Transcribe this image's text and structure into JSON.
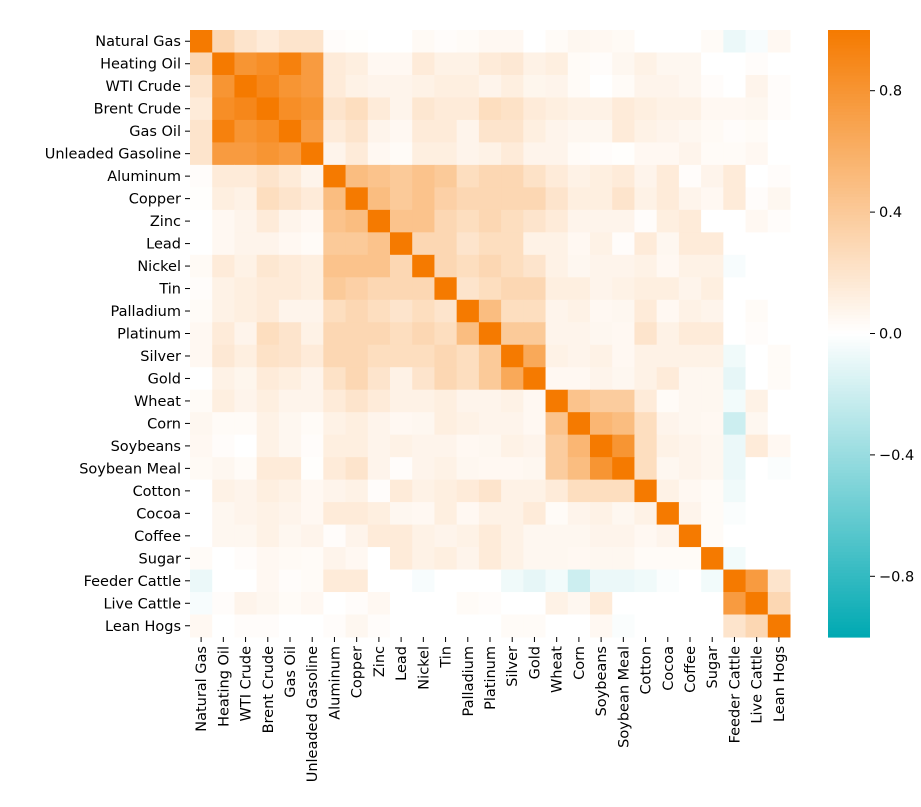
{
  "chart_data": {
    "type": "heatmap",
    "title": "",
    "xlabel": "",
    "ylabel": "",
    "labels": [
      "Natural Gas",
      "Heating Oil",
      "WTI Crude",
      "Brent Crude",
      "Gas Oil",
      "Unleaded Gasoline",
      "Aluminum",
      "Copper",
      "Zinc",
      "Lead",
      "Nickel",
      "Tin",
      "Palladium",
      "Platinum",
      "Silver",
      "Gold",
      "Wheat",
      "Corn",
      "Soybeans",
      "Soybean Meal",
      "Cotton",
      "Cocoa",
      "Coffee",
      "Sugar",
      "Feeder Cattle",
      "Live Cattle",
      "Lean Hogs"
    ],
    "symmetric": true,
    "upper_triangle": [
      [
        1,
        0.3,
        0.2,
        0.15,
        0.2,
        0.2,
        0.02,
        0.01,
        0,
        0,
        0.04,
        0.02,
        0.03,
        0.05,
        0.05,
        0,
        0.03,
        0.06,
        0.05,
        0.04,
        0,
        0,
        0,
        0.03,
        -0.08,
        -0.03,
        0.05
      ],
      [
        1,
        0.8,
        0.85,
        0.95,
        0.75,
        0.15,
        0.12,
        0.05,
        0.05,
        0.15,
        0.1,
        0.1,
        0.15,
        0.17,
        0.1,
        0.12,
        0.03,
        0.02,
        0.06,
        0.1,
        0.06,
        0.06,
        0,
        0,
        0.02,
        0,
        0.05
      ],
      [
        1,
        0.9,
        0.8,
        0.75,
        0.15,
        0.1,
        0.08,
        0.08,
        0.1,
        0.12,
        0.12,
        0.08,
        0.12,
        0.07,
        0.08,
        0.03,
        0,
        0.03,
        0.08,
        0.08,
        0.06,
        0.02,
        0,
        0.08,
        0.02,
        0.05
      ],
      [
        1,
        0.85,
        0.8,
        0.2,
        0.25,
        0.15,
        0.08,
        0.18,
        0.15,
        0.15,
        0.25,
        0.22,
        0.15,
        0.12,
        0.1,
        0.1,
        0.15,
        0.12,
        0.1,
        0.1,
        0.05,
        0.05,
        0.06,
        0.02,
        0
      ],
      [
        1,
        0.75,
        0.15,
        0.2,
        0.08,
        0.05,
        0.15,
        0.15,
        0.08,
        0.2,
        0.2,
        0.12,
        0.08,
        0.06,
        0.06,
        0.15,
        0.1,
        0.08,
        0.06,
        0.04,
        0.02,
        0.03,
        0,
        0
      ],
      [
        1,
        0.08,
        0.15,
        0.05,
        0.03,
        0.12,
        0.12,
        0.08,
        0.1,
        0.15,
        0.08,
        0.08,
        0.03,
        0.02,
        0.01,
        0.05,
        0.05,
        0.08,
        0.03,
        0.03,
        0.05,
        0,
        0
      ],
      [
        1,
        0.5,
        0.45,
        0.4,
        0.45,
        0.4,
        0.25,
        0.3,
        0.3,
        0.22,
        0.15,
        0.1,
        0.12,
        0.15,
        0.08,
        0.15,
        0.02,
        0.08,
        0.15,
        0,
        0.02,
        0
      ],
      [
        1,
        0.5,
        0.4,
        0.45,
        0.35,
        0.3,
        0.3,
        0.3,
        0.3,
        0.2,
        0.12,
        0.12,
        0.2,
        0.1,
        0.15,
        0.08,
        0.05,
        0.15,
        0.02,
        0.06,
        0.02
      ],
      [
        1,
        0.45,
        0.45,
        0.3,
        0.25,
        0.3,
        0.25,
        0.2,
        0.15,
        0.08,
        0.08,
        0.08,
        0.02,
        0.12,
        0.15,
        0,
        0,
        0.05,
        0.02,
        0.06
      ],
      [
        1,
        0.3,
        0.3,
        0.2,
        0.25,
        0.25,
        0.1,
        0.1,
        0.05,
        0.1,
        0.02,
        0.15,
        0.06,
        0.15,
        0.15,
        0,
        0,
        0,
        0
      ],
      [
        1,
        0.3,
        0.25,
        0.3,
        0.25,
        0.2,
        0.1,
        0.06,
        0.08,
        0.08,
        0.1,
        0.05,
        0.1,
        0.1,
        -0.03,
        0,
        0,
        0
      ],
      [
        1,
        0.2,
        0.25,
        0.3,
        0.3,
        0.12,
        0.12,
        0.08,
        0.1,
        0.12,
        0.12,
        0.08,
        0.12,
        0,
        0,
        0,
        0
      ],
      [
        1,
        0.5,
        0.25,
        0.25,
        0.08,
        0.1,
        0.05,
        0.06,
        0.15,
        0.05,
        0.1,
        0.08,
        0,
        0.03,
        0
      ],
      [
        1,
        0.4,
        0.4,
        0.08,
        0.08,
        0.06,
        0.05,
        0.2,
        0.1,
        0.15,
        0.15,
        0,
        0.02,
        0
      ],
      [
        1,
        0.65,
        0.1,
        0.08,
        0.1,
        0.05,
        0.1,
        0.1,
        0.1,
        0.1,
        -0.06,
        0,
        0.03
      ],
      [
        1,
        0.05,
        0.05,
        0.08,
        0.06,
        0.1,
        0.15,
        0.06,
        0.06,
        -0.1,
        0,
        0.03
      ],
      [
        1,
        0.45,
        0.38,
        0.38,
        0.15,
        0.03,
        0.06,
        0.06,
        -0.05,
        0.1,
        0
      ],
      [
        1,
        0.55,
        0.5,
        0.25,
        0.08,
        0.06,
        0.05,
        -0.2,
        0.06,
        0
      ],
      [
        1,
        0.8,
        0.25,
        0.1,
        0.08,
        0.06,
        -0.08,
        0.15,
        0.05
      ],
      [
        1,
        0.25,
        0.06,
        0.08,
        0.06,
        -0.08,
        0,
        -0.02
      ],
      [
        1,
        0.1,
        0.05,
        0.03,
        -0.06,
        0,
        0
      ],
      [
        1,
        0.08,
        0.03,
        -0.02,
        0,
        0
      ],
      [
        1,
        0.03,
        0,
        0,
        0
      ],
      [
        1,
        -0.05,
        0,
        0
      ],
      [
        1,
        0.75,
        0.2
      ],
      [
        1,
        0.3
      ],
      [
        1
      ]
    ],
    "vmin": -1,
    "vmax": 1,
    "colorbar": {
      "ticks": [
        0.8,
        0.4,
        0.0,
        -0.4,
        -0.8
      ],
      "tick_labels": [
        "0.8",
        "0.4",
        "0.0",
        "−0.4",
        "−0.8"
      ]
    },
    "colors": {
      "negative": "#00A9B2",
      "zero": "#FFFFFF",
      "positive": "#F57A00"
    },
    "grid": false,
    "legend": "colorbar-right"
  }
}
